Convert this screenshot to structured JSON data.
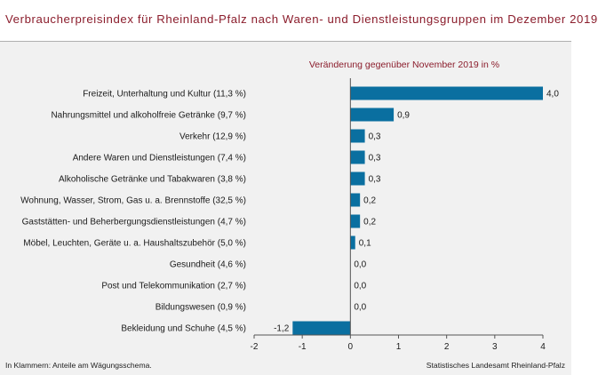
{
  "title": "Verbraucherpreisindex für Rheinland-Pfalz nach Waren- und Dienstleistungsgruppen im Dezember 2019",
  "footer_left": "In Klammern: Anteile am Wägungsschema.",
  "footer_right": "Statistisches Landesamt Rheinland-Pfalz",
  "colors": {
    "bar": "#0a6fa0",
    "title": "#8b1d2c",
    "background": "#f1f1f1"
  },
  "chart_data": {
    "type": "bar",
    "orientation": "horizontal",
    "subtitle": "Veränderung gegenüber November 2019 in %",
    "categories": [
      "Freizeit, Unterhaltung und Kultur (11,3 %)",
      "Nahrungsmittel und alkoholfreie Getränke (9,7 %)",
      "Verkehr (12,9 %)",
      "Andere Waren und Dienstleistungen (7,4 %)",
      "Alkoholische Getränke und Tabakwaren (3,8 %)",
      "Wohnung, Wasser, Strom, Gas u. a. Brennstoffe (32,5 %)",
      "Gaststätten- und Beherbergungsdienstleistungen (4,7 %)",
      "Möbel, Leuchten, Geräte u. a. Haushaltszubehör (5,0 %)",
      "Gesundheit (4,6 %)",
      "Post und Telekommunikation (2,7 %)",
      "Bildungswesen (0,9 %)",
      "Bekleidung und Schuhe (4,5 %)"
    ],
    "values": [
      4.0,
      0.9,
      0.3,
      0.3,
      0.3,
      0.2,
      0.2,
      0.1,
      0.0,
      0.0,
      0.0,
      -1.2
    ],
    "value_labels": [
      "4,0",
      "0,9",
      "0,3",
      "0,3",
      "0,3",
      "0,2",
      "0,2",
      "0,1",
      "0,0",
      "0,0",
      "0,0",
      "-1,2"
    ],
    "xlim": [
      -2,
      4
    ],
    "xticks": [
      -2,
      -1,
      0,
      1,
      2,
      3,
      4
    ],
    "xtick_labels": [
      "-2",
      "-1",
      "0",
      "1",
      "2",
      "3",
      "4"
    ],
    "grid": false
  }
}
